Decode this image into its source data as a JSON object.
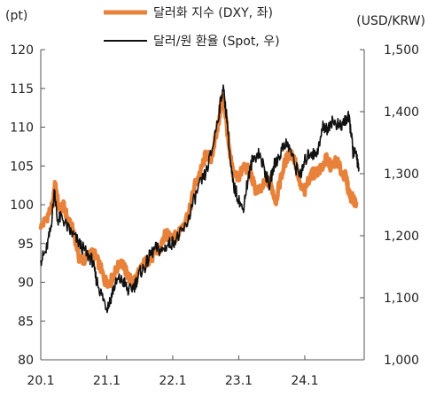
{
  "chart_data": {
    "type": "line",
    "y_left_unit": "(pt)",
    "y_right_unit": "(USD/KRW)",
    "y_left_range": [
      80,
      120
    ],
    "y_left_ticks": [
      80,
      85,
      90,
      95,
      100,
      105,
      110,
      115,
      120
    ],
    "y_right_range": [
      1000,
      1500
    ],
    "y_right_ticks": [
      "1,000",
      "1,100",
      "1,200",
      "1,300",
      "1,400",
      "1,500"
    ],
    "x_range": [
      2020.0,
      2024.9
    ],
    "x_ticks": [
      {
        "t": 2020.0,
        "label": "20.1"
      },
      {
        "t": 2021.0,
        "label": "21.1"
      },
      {
        "t": 2022.0,
        "label": "22.1"
      },
      {
        "t": 2023.0,
        "label": "23.1"
      },
      {
        "t": 2024.0,
        "label": "24.1"
      }
    ],
    "grid": false,
    "legend_position": "top",
    "series": [
      {
        "name": "달러화 지수 (DXY, 좌)",
        "axis": "left",
        "color": "#E8823A",
        "points": [
          [
            2020.0,
            97.0
          ],
          [
            2020.1,
            98.5
          ],
          [
            2020.18,
            99.8
          ],
          [
            2020.22,
            103.0
          ],
          [
            2020.27,
            99.5
          ],
          [
            2020.35,
            99.8
          ],
          [
            2020.42,
            97.8
          ],
          [
            2020.5,
            96.5
          ],
          [
            2020.58,
            93.2
          ],
          [
            2020.66,
            92.8
          ],
          [
            2020.75,
            93.8
          ],
          [
            2020.82,
            93.5
          ],
          [
            2020.9,
            92.0
          ],
          [
            2020.97,
            90.2
          ],
          [
            2021.05,
            90.0
          ],
          [
            2021.12,
            91.2
          ],
          [
            2021.22,
            92.8
          ],
          [
            2021.3,
            91.2
          ],
          [
            2021.38,
            90.0
          ],
          [
            2021.45,
            90.6
          ],
          [
            2021.55,
            92.3
          ],
          [
            2021.62,
            92.8
          ],
          [
            2021.7,
            93.3
          ],
          [
            2021.8,
            94.2
          ],
          [
            2021.88,
            96.0
          ],
          [
            2021.97,
            96.2
          ],
          [
            2022.05,
            95.8
          ],
          [
            2022.15,
            97.5
          ],
          [
            2022.25,
            99.0
          ],
          [
            2022.33,
            102.5
          ],
          [
            2022.42,
            104.2
          ],
          [
            2022.5,
            106.5
          ],
          [
            2022.58,
            106.0
          ],
          [
            2022.66,
            109.0
          ],
          [
            2022.72,
            112.2
          ],
          [
            2022.76,
            114.0
          ],
          [
            2022.8,
            111.5
          ],
          [
            2022.86,
            106.5
          ],
          [
            2022.92,
            104.0
          ],
          [
            2023.0,
            103.5
          ],
          [
            2023.08,
            105.0
          ],
          [
            2023.17,
            104.2
          ],
          [
            2023.25,
            102.0
          ],
          [
            2023.33,
            101.8
          ],
          [
            2023.42,
            103.2
          ],
          [
            2023.5,
            102.2
          ],
          [
            2023.56,
            100.4
          ],
          [
            2023.62,
            102.8
          ],
          [
            2023.7,
            105.5
          ],
          [
            2023.78,
            106.8
          ],
          [
            2023.85,
            105.8
          ],
          [
            2023.92,
            102.5
          ],
          [
            2024.0,
            101.7
          ],
          [
            2024.08,
            103.8
          ],
          [
            2024.17,
            104.2
          ],
          [
            2024.25,
            104.6
          ],
          [
            2024.33,
            106.0
          ],
          [
            2024.4,
            104.8
          ],
          [
            2024.48,
            105.8
          ],
          [
            2024.55,
            104.3
          ],
          [
            2024.62,
            103.6
          ],
          [
            2024.67,
            101.5
          ],
          [
            2024.72,
            100.8
          ],
          [
            2024.78,
            100.2
          ]
        ]
      },
      {
        "name": "달러/원 환율 (Spot, 우)",
        "axis": "right",
        "color": "#111111",
        "points": [
          [
            2020.0,
            1160
          ],
          [
            2020.08,
            1175
          ],
          [
            2020.15,
            1210
          ],
          [
            2020.21,
            1275
          ],
          [
            2020.25,
            1225
          ],
          [
            2020.32,
            1230
          ],
          [
            2020.42,
            1210
          ],
          [
            2020.5,
            1200
          ],
          [
            2020.6,
            1185
          ],
          [
            2020.7,
            1170
          ],
          [
            2020.78,
            1160
          ],
          [
            2020.84,
            1130
          ],
          [
            2020.92,
            1105
          ],
          [
            2021.0,
            1085
          ],
          [
            2021.05,
            1095
          ],
          [
            2021.1,
            1115
          ],
          [
            2021.18,
            1130
          ],
          [
            2021.26,
            1125
          ],
          [
            2021.33,
            1110
          ],
          [
            2021.42,
            1120
          ],
          [
            2021.5,
            1140
          ],
          [
            2021.58,
            1150
          ],
          [
            2021.66,
            1170
          ],
          [
            2021.75,
            1180
          ],
          [
            2021.83,
            1175
          ],
          [
            2021.92,
            1185
          ],
          [
            2022.0,
            1190
          ],
          [
            2022.1,
            1200
          ],
          [
            2022.2,
            1215
          ],
          [
            2022.3,
            1250
          ],
          [
            2022.4,
            1280
          ],
          [
            2022.5,
            1300
          ],
          [
            2022.6,
            1340
          ],
          [
            2022.7,
            1400
          ],
          [
            2022.76,
            1440
          ],
          [
            2022.82,
            1390
          ],
          [
            2022.88,
            1310
          ],
          [
            2022.92,
            1280
          ],
          [
            2022.98,
            1265
          ],
          [
            2023.06,
            1240
          ],
          [
            2023.12,
            1280
          ],
          [
            2023.2,
            1320
          ],
          [
            2023.3,
            1335
          ],
          [
            2023.38,
            1310
          ],
          [
            2023.46,
            1280
          ],
          [
            2023.54,
            1315
          ],
          [
            2023.62,
            1330
          ],
          [
            2023.7,
            1350
          ],
          [
            2023.78,
            1340
          ],
          [
            2023.86,
            1310
          ],
          [
            2023.95,
            1300
          ],
          [
            2024.0,
            1320
          ],
          [
            2024.08,
            1335
          ],
          [
            2024.15,
            1330
          ],
          [
            2024.22,
            1345
          ],
          [
            2024.28,
            1380
          ],
          [
            2024.33,
            1370
          ],
          [
            2024.4,
            1385
          ],
          [
            2024.48,
            1380
          ],
          [
            2024.55,
            1375
          ],
          [
            2024.6,
            1385
          ],
          [
            2024.66,
            1390
          ],
          [
            2024.7,
            1370
          ],
          [
            2024.73,
            1335
          ],
          [
            2024.78,
            1330
          ],
          [
            2024.82,
            1310
          ]
        ]
      }
    ]
  }
}
